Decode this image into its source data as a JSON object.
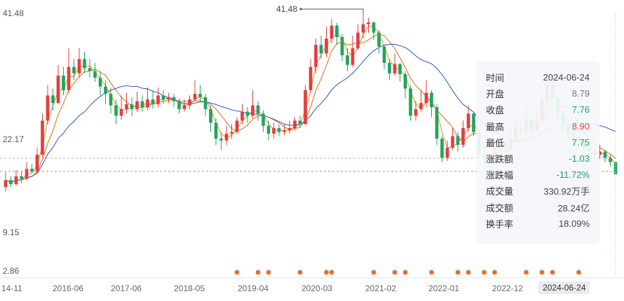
{
  "chart_data": {
    "type": "candlestick",
    "y_axis": {
      "scale": "log",
      "ticks": [
        "41.48",
        "22.17",
        "9.15",
        "2.86"
      ],
      "min": 2.86,
      "max": 41.48
    },
    "x_axis": {
      "tick_labels": [
        "14-11",
        "2016-06",
        "2017-06",
        "2018-05",
        "2019-04",
        "2020-03",
        "2021-02",
        "2022-01",
        "2022-12"
      ],
      "active_label": "2024-06-24"
    },
    "peak_annotation": "41.48",
    "reference_lines": [
      9.15,
      8.0
    ],
    "candles": [
      [
        6.8,
        7.3,
        7.9,
        6.5
      ],
      [
        7.3,
        7.0,
        7.6,
        6.8
      ],
      [
        7.0,
        7.6,
        8.1,
        6.9
      ],
      [
        7.6,
        7.4,
        8.0,
        7.1
      ],
      [
        7.4,
        8.2,
        8.8,
        7.3
      ],
      [
        8.2,
        8.0,
        8.6,
        7.8
      ],
      [
        8.0,
        9.5,
        10.2,
        7.9
      ],
      [
        9.5,
        13.5,
        14.5,
        9.3
      ],
      [
        13.5,
        17.5,
        19.5,
        13.0
      ],
      [
        17.5,
        16.2,
        18.8,
        15.0
      ],
      [
        16.2,
        21.5,
        24.0,
        16.0
      ],
      [
        21.5,
        18.5,
        23.5,
        17.5
      ],
      [
        18.5,
        23.5,
        28.5,
        18.0
      ],
      [
        23.5,
        22.0,
        25.5,
        20.5
      ],
      [
        22.0,
        25.5,
        28.5,
        21.0
      ],
      [
        25.5,
        23.2,
        27.5,
        22.0
      ],
      [
        23.2,
        22.5,
        25.5,
        21.0
      ],
      [
        22.5,
        21.0,
        24.5,
        20.2
      ],
      [
        21.0,
        19.2,
        22.5,
        17.5
      ],
      [
        19.2,
        17.8,
        20.5,
        16.0
      ],
      [
        17.8,
        15.8,
        19.0,
        14.5
      ],
      [
        15.8,
        14.2,
        16.8,
        13.0
      ],
      [
        14.2,
        15.2,
        17.5,
        13.6
      ],
      [
        15.2,
        16.0,
        18.0,
        14.5
      ],
      [
        16.0,
        15.2,
        17.2,
        14.1
      ],
      [
        15.2,
        16.5,
        18.2,
        14.8
      ],
      [
        16.5,
        15.5,
        17.5,
        14.8
      ],
      [
        15.5,
        16.8,
        19.0,
        15.0
      ],
      [
        16.8,
        16.0,
        18.5,
        15.3
      ],
      [
        16.0,
        17.5,
        19.0,
        15.5
      ],
      [
        17.5,
        16.8,
        18.5,
        16.0
      ],
      [
        16.8,
        17.2,
        18.0,
        16.2
      ],
      [
        17.2,
        16.5,
        17.8,
        15.5
      ],
      [
        16.5,
        15.2,
        17.0,
        14.5
      ],
      [
        15.2,
        15.8,
        16.8,
        14.8
      ],
      [
        15.8,
        16.8,
        17.5,
        15.2
      ],
      [
        16.8,
        17.8,
        20.5,
        16.5
      ],
      [
        17.8,
        17.2,
        19.5,
        16.5
      ],
      [
        17.2,
        15.2,
        17.8,
        14.2
      ],
      [
        15.2,
        13.2,
        15.8,
        12.0
      ],
      [
        13.2,
        11.2,
        13.8,
        10.5
      ],
      [
        11.2,
        11.0,
        12.0,
        10.0
      ],
      [
        11.0,
        11.8,
        12.8,
        10.5
      ],
      [
        11.8,
        12.0,
        13.0,
        11.2
      ],
      [
        12.0,
        13.5,
        14.0,
        11.8
      ],
      [
        13.5,
        14.8,
        16.0,
        13.0
      ],
      [
        14.8,
        14.2,
        15.5,
        13.2
      ],
      [
        14.2,
        15.8,
        18.5,
        13.8
      ],
      [
        15.8,
        14.5,
        16.5,
        13.5
      ],
      [
        14.5,
        12.8,
        15.0,
        12.0
      ],
      [
        12.8,
        11.8,
        13.5,
        11.0
      ],
      [
        11.8,
        12.5,
        13.2,
        11.2
      ],
      [
        12.5,
        12.0,
        13.0,
        11.5
      ],
      [
        12.0,
        12.2,
        13.0,
        11.6
      ],
      [
        12.2,
        12.5,
        13.5,
        11.8
      ],
      [
        12.5,
        13.5,
        14.0,
        12.2
      ],
      [
        13.5,
        13.0,
        14.2,
        12.5
      ],
      [
        13.0,
        18.5,
        19.5,
        13.0
      ],
      [
        18.5,
        23.5,
        25.5,
        18.0
      ],
      [
        23.5,
        29.5,
        31.5,
        22.0
      ],
      [
        29.5,
        27.0,
        32.5,
        25.5
      ],
      [
        27.0,
        31.5,
        35.5,
        26.0
      ],
      [
        31.5,
        36.0,
        38.5,
        30.0
      ],
      [
        36.0,
        32.0,
        37.0,
        29.5
      ],
      [
        32.0,
        26.5,
        33.0,
        25.0
      ],
      [
        26.5,
        24.0,
        28.5,
        22.5
      ],
      [
        24.0,
        28.5,
        32.5,
        23.5
      ],
      [
        28.5,
        33.5,
        36.5,
        28.0
      ],
      [
        33.5,
        36.5,
        41.48,
        31.5
      ],
      [
        36.5,
        37.2,
        39.0,
        33.5
      ],
      [
        37.2,
        33.5,
        37.5,
        31.0
      ],
      [
        33.5,
        29.0,
        34.5,
        27.0
      ],
      [
        29.0,
        24.5,
        29.5,
        23.0
      ],
      [
        24.5,
        22.0,
        25.5,
        20.5
      ],
      [
        22.0,
        24.2,
        27.0,
        21.5
      ],
      [
        24.2,
        21.8,
        24.5,
        20.2
      ],
      [
        21.8,
        18.8,
        22.5,
        17.0
      ],
      [
        18.8,
        14.2,
        19.5,
        13.5
      ],
      [
        14.2,
        15.2,
        16.5,
        13.5
      ],
      [
        15.2,
        16.2,
        18.5,
        14.8
      ],
      [
        16.2,
        18.0,
        20.5,
        15.5
      ],
      [
        18.0,
        15.5,
        18.5,
        14.0
      ],
      [
        15.5,
        11.2,
        16.0,
        10.5
      ],
      [
        11.2,
        9.2,
        11.5,
        8.8
      ],
      [
        9.2,
        10.2,
        11.0,
        8.9
      ],
      [
        10.2,
        11.5,
        12.5,
        10.0
      ],
      [
        11.5,
        10.5,
        12.0,
        9.8
      ],
      [
        10.5,
        12.5,
        13.5,
        10.2
      ],
      [
        12.5,
        14.5,
        15.8,
        12.0
      ],
      [
        14.5,
        12.0,
        14.8,
        11.5
      ],
      [
        12.0,
        9.5,
        12.5,
        9.0
      ],
      [
        9.5,
        9.2,
        10.0,
        8.5
      ],
      [
        9.2,
        8.8,
        9.5,
        8.0
      ],
      [
        8.8,
        10.2,
        11.2,
        8.6
      ],
      [
        10.2,
        10.8,
        11.5,
        10.0
      ],
      [
        10.8,
        10.2,
        11.2,
        9.5
      ],
      [
        10.2,
        11.0,
        12.5,
        10.0
      ],
      [
        11.0,
        12.5,
        13.5,
        10.8
      ],
      [
        12.5,
        12.0,
        13.2,
        11.5
      ],
      [
        12.0,
        13.5,
        15.5,
        11.8
      ],
      [
        13.5,
        12.2,
        14.0,
        11.5
      ],
      [
        12.2,
        13.5,
        15.0,
        12.0
      ],
      [
        13.5,
        16.8,
        18.0,
        13.0
      ],
      [
        16.8,
        19.5,
        22.0,
        16.0
      ],
      [
        19.5,
        17.0,
        20.0,
        15.5
      ],
      [
        17.0,
        14.5,
        17.5,
        13.5
      ],
      [
        14.5,
        12.8,
        15.0,
        12.0
      ],
      [
        12.8,
        11.8,
        13.2,
        11.0
      ],
      [
        11.8,
        11.2,
        12.5,
        10.5
      ],
      [
        11.2,
        10.8,
        11.5,
        10.0
      ],
      [
        10.8,
        10.2,
        11.2,
        9.5
      ],
      [
        10.2,
        9.8,
        10.8,
        9.2
      ],
      [
        9.8,
        9.5,
        10.2,
        9.0
      ],
      [
        9.5,
        9.8,
        10.5,
        9.1
      ],
      [
        9.8,
        9.2,
        10.0,
        8.8
      ],
      [
        9.2,
        8.8,
        9.5,
        8.4
      ],
      [
        8.79,
        7.76,
        8.9,
        7.75
      ]
    ],
    "event_marker_candles": [
      44,
      48,
      50,
      56,
      61,
      62,
      70,
      74,
      76,
      81,
      86,
      88,
      91,
      93,
      99,
      102,
      104,
      109
    ],
    "ma_short_color": "#e2a21a",
    "ma_mid_color": "#e07820",
    "ma_long_color": "#3a63c8",
    "up_color": "#e83b3b",
    "down_color": "#22a35d"
  },
  "tooltip": {
    "rows": [
      {
        "label": "时间",
        "value": "2024-06-24",
        "tone": "plain"
      },
      {
        "label": "开盘",
        "value": "8.79",
        "tone": "neutral"
      },
      {
        "label": "收盘",
        "value": "7.76",
        "tone": "down"
      },
      {
        "label": "最高",
        "value": "8.90",
        "tone": "up"
      },
      {
        "label": "最低",
        "value": "7.75",
        "tone": "down"
      },
      {
        "label": "涨跌额",
        "value": "-1.03",
        "tone": "down"
      },
      {
        "label": "涨跌幅",
        "value": "-11.72%",
        "tone": "down"
      },
      {
        "label": "成交量",
        "value": "330.92万手",
        "tone": "plain"
      },
      {
        "label": "成交额",
        "value": "28.24亿",
        "tone": "plain"
      },
      {
        "label": "换手率",
        "value": "18.09%",
        "tone": "plain"
      }
    ]
  }
}
